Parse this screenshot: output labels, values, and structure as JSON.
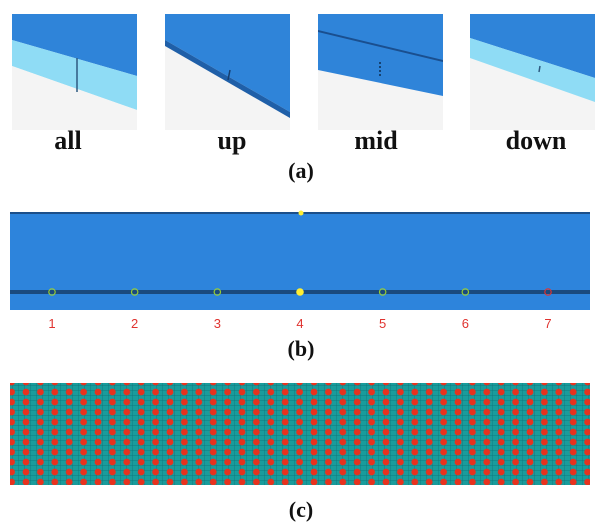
{
  "panel_a": {
    "labels": [
      "all",
      "up",
      "mid",
      "down"
    ],
    "caption": "(a)"
  },
  "panel_b": {
    "positions": [
      1,
      2,
      3,
      4,
      5,
      6,
      7
    ],
    "caption": "(b)"
  },
  "panel_c": {
    "caption": "(c)"
  }
}
